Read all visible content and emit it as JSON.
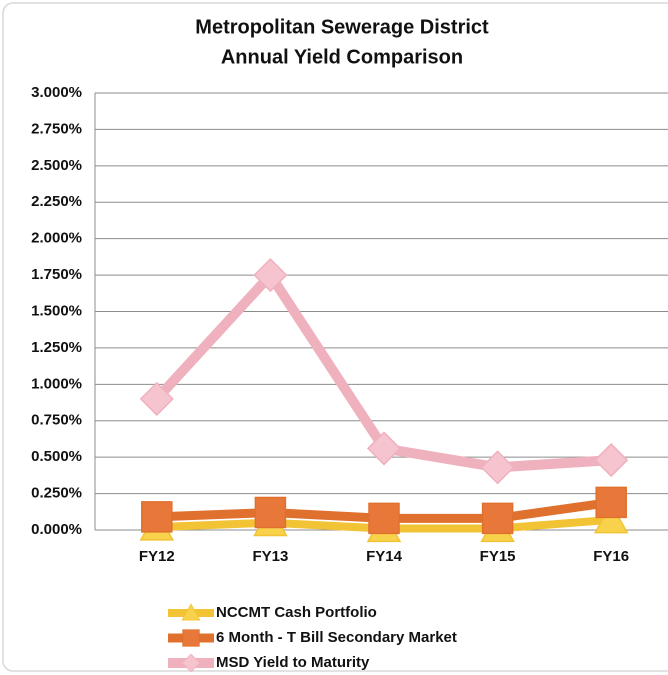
{
  "chart_data": {
    "type": "line",
    "title": [
      "Metropolitan Sewerage District",
      "Annual Yield Comparison"
    ],
    "categories": [
      "FY12",
      "FY13",
      "FY14",
      "FY15",
      "FY16"
    ],
    "series": [
      {
        "name": "NCCMT Cash Portfolio",
        "color": "#f2c335",
        "marker": "triangle",
        "values": [
          0.02,
          0.05,
          0.01,
          0.01,
          0.07
        ]
      },
      {
        "name": "6 Month - T Bill Secondary Market",
        "color": "#e0702e",
        "marker": "square",
        "values": [
          0.09,
          0.12,
          0.08,
          0.08,
          0.19
        ]
      },
      {
        "name": "MSD Yield to Maturity",
        "color": "#efb1bd",
        "marker": "diamond",
        "values": [
          0.9,
          1.75,
          0.56,
          0.43,
          0.48
        ]
      }
    ],
    "ylim": [
      0,
      3
    ],
    "yticks": [
      {
        "value": 0,
        "label": "0.000%"
      },
      {
        "value": 0.25,
        "label": "0.250%"
      },
      {
        "value": 0.5,
        "label": "0.500%"
      },
      {
        "value": 0.75,
        "label": "0.750%"
      },
      {
        "value": 1,
        "label": "1.000%"
      },
      {
        "value": 1.25,
        "label": "1.250%"
      },
      {
        "value": 1.5,
        "label": "1.500%"
      },
      {
        "value": 1.75,
        "label": "1.750%"
      },
      {
        "value": 2,
        "label": "2.000%"
      },
      {
        "value": 2.25,
        "label": "2.250%"
      },
      {
        "value": 2.5,
        "label": "2.500%"
      },
      {
        "value": 2.75,
        "label": "2.750%"
      },
      {
        "value": 3,
        "label": "3.000%"
      }
    ],
    "grid": true,
    "legend": "bottom"
  }
}
